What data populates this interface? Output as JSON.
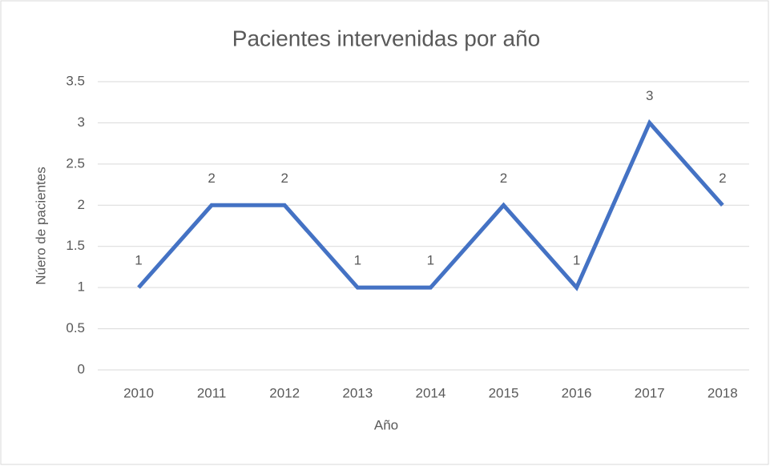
{
  "chart_data": {
    "type": "line",
    "title": "Pacientes intervenidas por año",
    "x_label": "Año",
    "y_label": "Núero de pacientes",
    "categories": [
      "2010",
      "2011",
      "2012",
      "2013",
      "2014",
      "2015",
      "2016",
      "2017",
      "2018"
    ],
    "values": [
      1,
      2,
      2,
      1,
      1,
      2,
      1,
      3,
      2
    ],
    "color": "#4472c4",
    "ylim": [
      0,
      3.5
    ],
    "yticks": [
      0,
      0.5,
      1,
      1.5,
      2,
      2.5,
      3,
      3.5
    ],
    "grid": true,
    "data_labels": true
  }
}
